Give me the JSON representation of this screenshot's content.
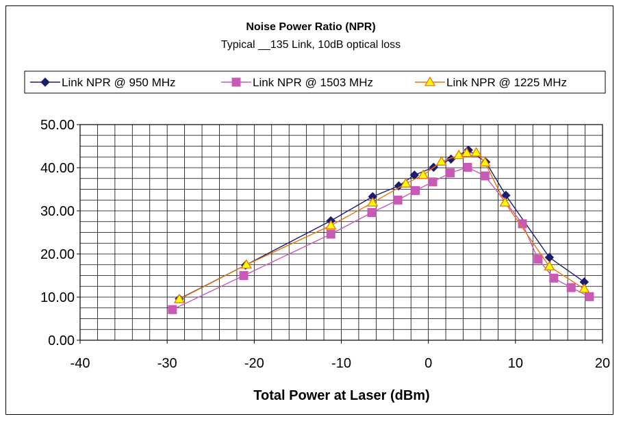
{
  "chart_data": {
    "type": "line",
    "title": "Noise Power Ratio (NPR)",
    "subtitle": "Typical __135 Link, 10dB optical loss",
    "xlabel": "Total Power at Laser (dBm)",
    "ylabel": "",
    "xlim": [
      -40,
      20
    ],
    "ylim": [
      0,
      50
    ],
    "x_major_ticks": [
      -40,
      -30,
      -20,
      -10,
      0,
      10,
      20
    ],
    "x_tick_labels": [
      "-40",
      "-30",
      "-20",
      "-10",
      "0",
      "10",
      "20"
    ],
    "y_major_ticks": [
      0,
      10,
      20,
      30,
      40,
      50
    ],
    "y_tick_labels": [
      "0.00",
      "10.00",
      "20.00",
      "30.00",
      "40.00",
      "50.00"
    ],
    "x_minor_step": 2,
    "y_minor_step": 2.5,
    "grid": true,
    "legend_position": "top",
    "series": [
      {
        "name": "Link NPR @ 950 MHz",
        "color": "#1c1c6e",
        "marker": "diamond",
        "x": [
          -28.6,
          -21.0,
          -11.2,
          -6.4,
          -3.4,
          -1.6,
          0.6,
          2.6,
          4.6,
          6.6,
          8.9,
          13.9,
          17.9
        ],
        "y": [
          9.6,
          17.4,
          27.7,
          33.3,
          35.8,
          38.3,
          40.1,
          42.0,
          44.1,
          41.3,
          33.6,
          19.2,
          13.5
        ]
      },
      {
        "name": "Link NPR @ 1503 MHz",
        "color": "#c85ab5",
        "marker": "square",
        "x": [
          -29.4,
          -21.2,
          -11.2,
          -6.5,
          -3.5,
          -1.5,
          0.5,
          2.5,
          4.5,
          6.5,
          10.8,
          12.6,
          14.4,
          16.4,
          18.5
        ],
        "y": [
          7.1,
          15.0,
          24.6,
          29.6,
          32.5,
          34.7,
          36.7,
          38.8,
          40.1,
          38.1,
          27.0,
          18.8,
          14.4,
          12.2,
          10.1
        ]
      },
      {
        "name": "Link NPR @ 1225 MHz",
        "color": "#e8740c",
        "marker": "triangle",
        "marker_fill": "#ffff00",
        "x": [
          -28.6,
          -20.9,
          -11.2,
          -6.4,
          -2.6,
          -0.6,
          1.5,
          3.5,
          4.4,
          5.5,
          6.5,
          8.8,
          13.9,
          17.9
        ],
        "y": [
          9.5,
          17.5,
          26.6,
          31.9,
          36.3,
          38.3,
          41.4,
          42.9,
          43.4,
          43.5,
          41.2,
          31.9,
          17.1,
          11.9
        ]
      }
    ]
  }
}
